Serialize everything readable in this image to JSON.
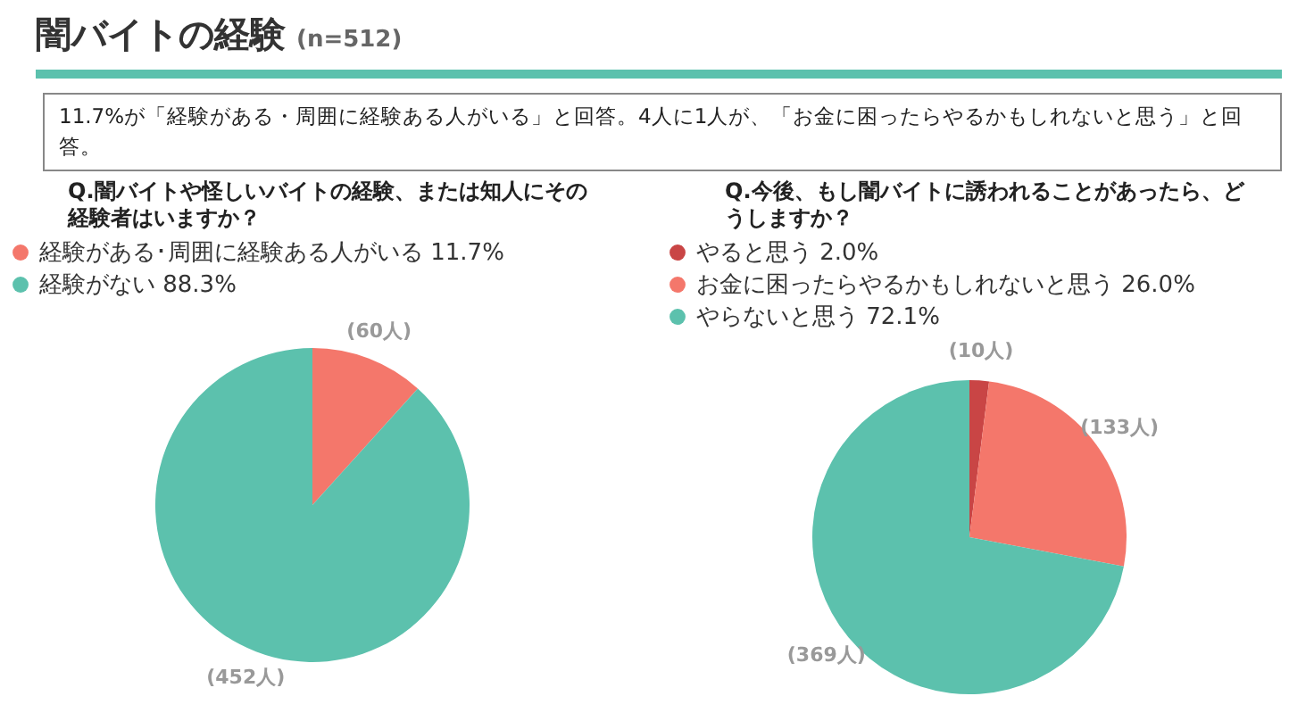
{
  "chart_data": [
    {
      "type": "other",
      "title": "闇バイトの経験",
      "subtitle": "(n=512)",
      "annotations": [
        "11.7%が「経験がある・周囲に経験ある人がいる」と回答。4人に1人が、「お金に困ったらやるかもしれないと思う」と回答。"
      ]
    },
    {
      "type": "pie",
      "title": "Q.闇バイトや怪しいバイトの経験、または知人にその経験者はいますか？",
      "categories": [
        "経験がある･周囲に経験ある人がいる",
        "経験がない"
      ],
      "values": [
        11.7,
        88.3
      ],
      "colors": [
        "#f4776b",
        "#5cc1ad"
      ],
      "value_labels": [
        "11.7%",
        "88.3%"
      ],
      "annotations": [
        "(60人)",
        "(452人)"
      ],
      "legend": "top"
    },
    {
      "type": "pie",
      "title": "Q.今後、もし闇バイトに誘われることがあったら、どうしますか？",
      "categories": [
        "やると思う",
        "お金に困ったらやるかもしれないと思う",
        "やらないと思う"
      ],
      "values": [
        2.0,
        26.0,
        72.1
      ],
      "colors": [
        "#c94545",
        "#f4776b",
        "#5cc1ad"
      ],
      "value_labels": [
        "2.0%",
        "26.0%",
        "72.1%"
      ],
      "annotations": [
        "(10人)",
        "(133人)",
        "(369人)"
      ],
      "legend": "top"
    }
  ]
}
